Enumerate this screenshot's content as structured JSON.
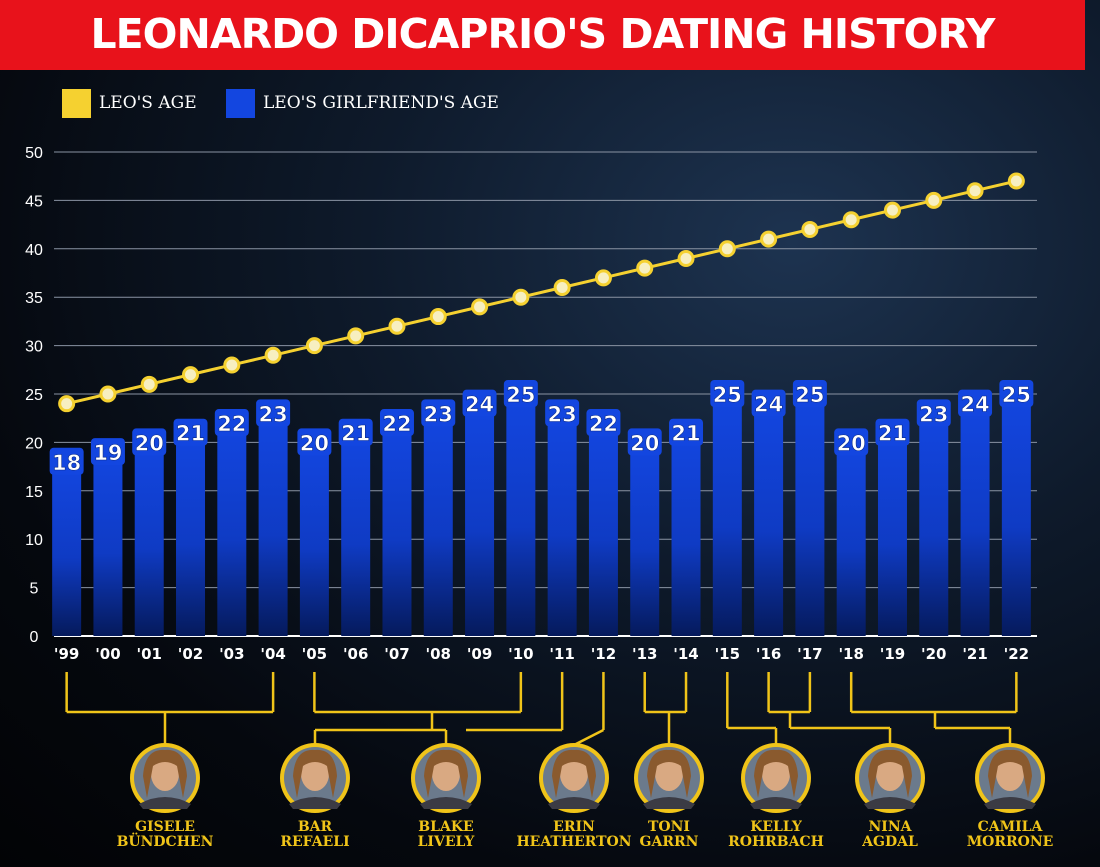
{
  "title": "LEONARDO DICAPRIO'S DATING HISTORY",
  "legend": [
    {
      "label": "LEO'S AGE",
      "color": "#f5d130"
    },
    {
      "label": "LEO'S GIRLFRIEND'S AGE",
      "color": "#1346e0"
    }
  ],
  "colors": {
    "title_bg": "#e8121b",
    "leo_line": "#f5d130",
    "bar": "#1346e0",
    "bar_label_text": "#1a3fb0",
    "connector": "#f0c419"
  },
  "chart_data": {
    "type": "bar",
    "categories": [
      "'99",
      "'00",
      "'01",
      "'02",
      "'03",
      "'04",
      "'05",
      "'06",
      "'07",
      "'08",
      "'09",
      "'10",
      "'11",
      "'12",
      "'13",
      "'14",
      "'15",
      "'16",
      "'17",
      "'18",
      "'19",
      "'20",
      "'21",
      "'22"
    ],
    "series": [
      {
        "name": "LEO'S GIRLFRIEND'S AGE",
        "type": "bar",
        "values": [
          18,
          19,
          20,
          21,
          22,
          23,
          20,
          21,
          22,
          23,
          24,
          25,
          23,
          22,
          20,
          21,
          25,
          24,
          25,
          20,
          21,
          23,
          24,
          25
        ]
      },
      {
        "name": "LEO'S AGE",
        "type": "line",
        "values": [
          24,
          25,
          26,
          27,
          28,
          29,
          30,
          31,
          32,
          33,
          34,
          35,
          36,
          37,
          38,
          39,
          40,
          41,
          42,
          43,
          44,
          45,
          46,
          47
        ]
      }
    ],
    "ylim": [
      0,
      50
    ],
    "yticks": [
      0,
      5,
      10,
      15,
      20,
      25,
      30,
      35,
      40,
      45,
      50
    ],
    "grid": true,
    "legend_position": "top-left"
  },
  "girlfriends": [
    {
      "name_lines": [
        "GISELE",
        "BÜNDCHEN"
      ],
      "years": [
        0,
        5
      ]
    },
    {
      "name_lines": [
        "BAR",
        "REFAELI"
      ],
      "years": [
        6,
        11
      ]
    },
    {
      "name_lines": [
        "BLAKE",
        "LIVELY"
      ],
      "years": [
        12
      ]
    },
    {
      "name_lines": [
        "ERIN",
        "HEATHERTON"
      ],
      "years": [
        13
      ]
    },
    {
      "name_lines": [
        "TONI",
        "GARRN"
      ],
      "years": [
        14,
        15
      ]
    },
    {
      "name_lines": [
        "KELLY",
        "ROHRBACH"
      ],
      "years": [
        16
      ]
    },
    {
      "name_lines": [
        "NINA",
        "AGDAL"
      ],
      "years": [
        17,
        18
      ]
    },
    {
      "name_lines": [
        "CAMILA",
        "MORRONE"
      ],
      "years": [
        19,
        23
      ]
    }
  ]
}
